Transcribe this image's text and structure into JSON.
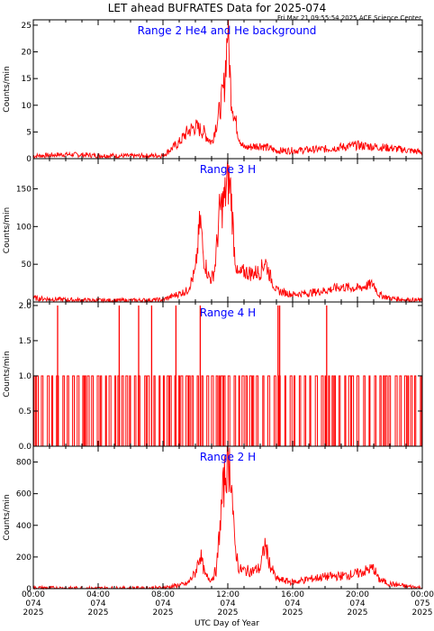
{
  "figure": {
    "title": "LET ahead BUFRATES Data for 2025-074",
    "timestamp": "Fri Mar 21 09:55:54 2025 ACE Science Center",
    "xlabel": "UTC Day of Year",
    "x_ticks": [
      {
        "time": "00:00",
        "day": "074",
        "year": "2025"
      },
      {
        "time": "04:00",
        "day": "074",
        "year": "2025"
      },
      {
        "time": "08:00",
        "day": "074",
        "year": "2025"
      },
      {
        "time": "12:00",
        "day": "074",
        "year": "2025"
      },
      {
        "time": "16:00",
        "day": "074",
        "year": "2025"
      },
      {
        "time": "20:00",
        "day": "074",
        "year": "2025"
      },
      {
        "time": "00:00",
        "day": "075",
        "year": "2025"
      }
    ],
    "line_color": "#ff0000",
    "title_color": "#0000ff"
  },
  "chart_data": [
    {
      "type": "line",
      "title": "Range 2 He4 and He background",
      "ylabel": "Counts/min",
      "xlim": [
        0,
        24
      ],
      "ylim": [
        0,
        26
      ],
      "yticks": [
        0,
        5,
        10,
        15,
        20,
        25
      ],
      "series": [
        {
          "x": [
            0,
            2,
            4,
            6,
            8,
            9,
            9.5,
            10,
            10.5,
            11,
            11.5,
            11.8,
            12,
            12.2,
            12.4,
            12.7,
            13,
            14,
            15,
            16,
            18,
            20,
            22,
            24
          ],
          "values": [
            0.5,
            0.8,
            0.6,
            0.5,
            0.6,
            3,
            5,
            6,
            5,
            3,
            9,
            14,
            25,
            12,
            8,
            4,
            2,
            2.5,
            1.5,
            1.5,
            1.8,
            2.5,
            2,
            1.2
          ]
        }
      ]
    },
    {
      "type": "line",
      "title": "Range 3 H",
      "ylabel": "Counts/min",
      "xlim": [
        0,
        24
      ],
      "ylim": [
        0,
        190
      ],
      "yticks": [
        0,
        50,
        100,
        150
      ],
      "series": [
        {
          "x": [
            0,
            2,
            4,
            6,
            8,
            9.5,
            10,
            10.3,
            10.5,
            10.8,
            11,
            11.2,
            11.5,
            11.8,
            12,
            12.2,
            12.4,
            12.6,
            13,
            13.5,
            14,
            14.3,
            14.6,
            15,
            16,
            17,
            18,
            19,
            20,
            21,
            21.3,
            22,
            23,
            24
          ],
          "values": [
            5,
            3,
            2,
            2,
            3,
            15,
            40,
            110,
            60,
            35,
            30,
            45,
            120,
            135,
            165,
            145,
            70,
            35,
            40,
            38,
            40,
            55,
            35,
            15,
            10,
            12,
            15,
            20,
            18,
            24,
            10,
            5,
            3,
            2
          ]
        }
      ]
    },
    {
      "type": "line",
      "title": "Range 4 H",
      "ylabel": "Counts/min",
      "xlim": [
        0,
        24
      ],
      "ylim": [
        0,
        2.05
      ],
      "yticks": [
        0.0,
        0.5,
        1.0,
        1.5,
        2.0
      ],
      "spikes_to_2": [
        1.5,
        5.3,
        6.5,
        7.3,
        8.8,
        10.3,
        15.1,
        15.2,
        18.1
      ],
      "base_level": 1.0,
      "series": [
        {
          "x": [
            0,
            24
          ],
          "values": [
            0,
            1
          ]
        }
      ]
    },
    {
      "type": "line",
      "title": "Range 2 H",
      "ylabel": "Counts/min",
      "xlim": [
        0,
        24
      ],
      "ylim": [
        0,
        900
      ],
      "yticks": [
        0,
        200,
        400,
        600,
        800
      ],
      "series": [
        {
          "x": [
            0,
            2,
            4,
            6,
            8,
            9.5,
            10,
            10.3,
            10.6,
            11,
            11.3,
            11.6,
            11.8,
            12,
            12.2,
            12.4,
            12.7,
            13,
            13.5,
            14,
            14.3,
            14.6,
            15,
            16,
            17,
            18,
            19,
            20,
            21,
            21.3,
            22,
            23,
            24
          ],
          "values": [
            5,
            3,
            2,
            3,
            5,
            30,
            100,
            220,
            80,
            60,
            120,
            500,
            700,
            820,
            750,
            300,
            120,
            115,
            110,
            130,
            280,
            150,
            60,
            40,
            60,
            75,
            80,
            95,
            130,
            60,
            30,
            15,
            5
          ]
        }
      ]
    }
  ]
}
